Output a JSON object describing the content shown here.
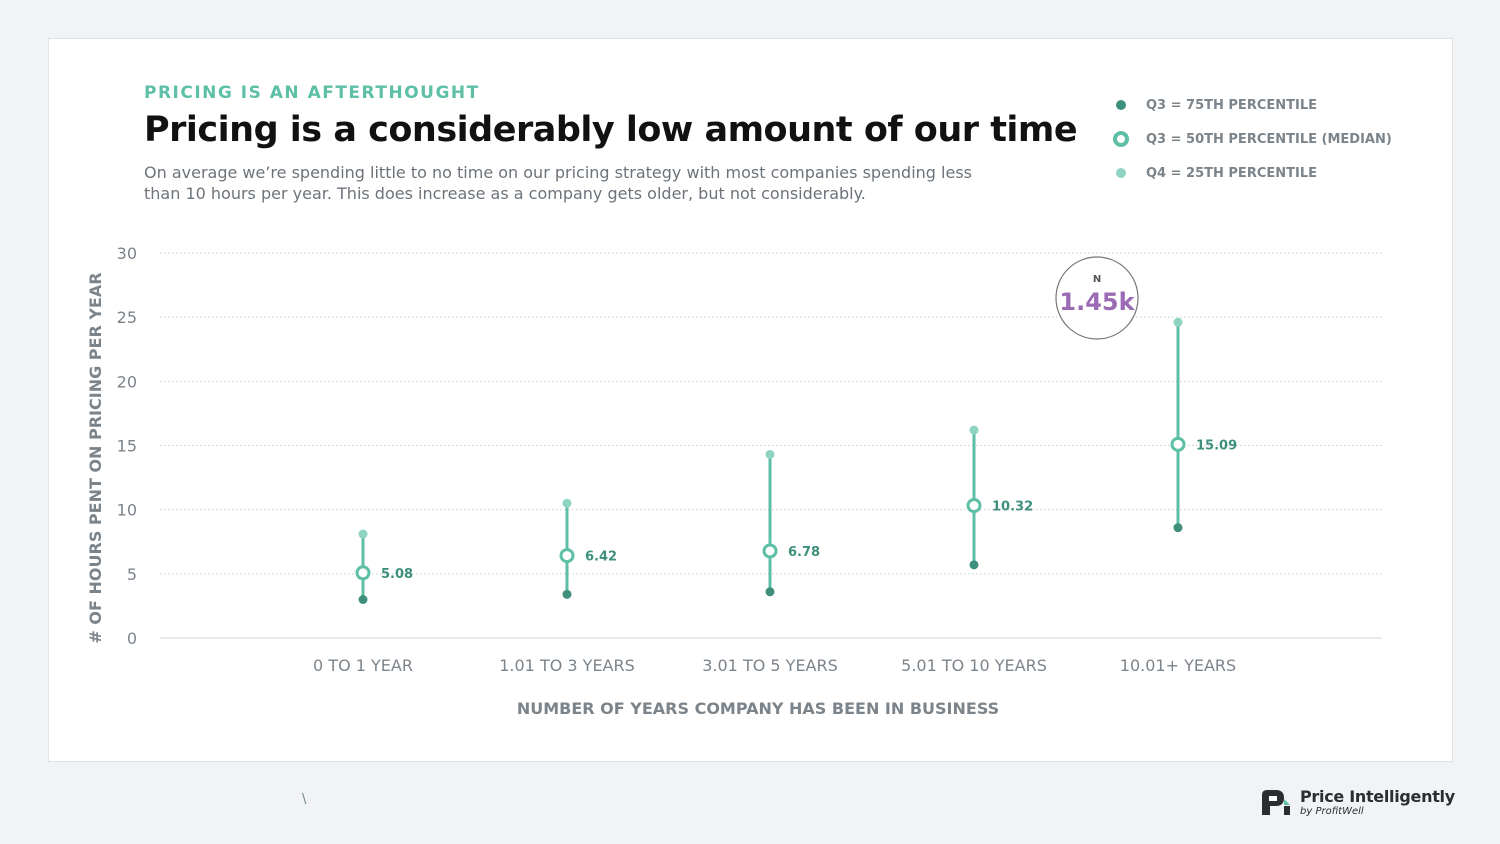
{
  "header": {
    "kicker": "PRICING IS AN AFTERTHOUGHT",
    "title": "Pricing is a considerably low amount of our time",
    "subtitle": "On average we’re spending little to no time on our pricing strategy with most companies spending less than 10 hours per year. This does increase as a company gets older, but not considerably."
  },
  "legend": [
    {
      "label": "Q3 = 75TH PERCENTILE",
      "color": "#3f8f7d",
      "style": "solid-dot"
    },
    {
      "label": "Q3 = 50TH PERCENTILE (MEDIAN)",
      "color": "#5cbfa6",
      "style": "ring"
    },
    {
      "label": "Q4 = 25TH PERCENTILE",
      "color": "#8fd3c3",
      "style": "light-dot"
    }
  ],
  "badge": {
    "label": "N",
    "value": "1.45k",
    "color": "#9b6bb5"
  },
  "stray_mark": "\\",
  "brand": {
    "name": "Price Intelligently",
    "by": "by ProfitWell"
  },
  "chart_data": {
    "type": "range-dot",
    "xlabel": "NUMBER OF YEARS COMPANY HAS BEEN IN BUSINESS",
    "ylabel": "# OF HOURS PENT ON PRICING PER YEAR",
    "ylim": [
      0,
      30
    ],
    "yticks": [
      0,
      5,
      10,
      15,
      20,
      25,
      30
    ],
    "grid": true,
    "legend_position": "top-right",
    "categories": [
      "0 TO 1 YEAR",
      "1.01 TO 3 YEARS",
      "3.01 TO 5 YEARS",
      "5.01 TO 10 YEARS",
      "10.01+ YEARS"
    ],
    "series": [
      {
        "name": "Q3 = 75TH PERCENTILE",
        "values": [
          3.0,
          3.4,
          3.6,
          5.7,
          8.6
        ]
      },
      {
        "name": "Q3 = 50TH PERCENTILE (MEDIAN)",
        "values": [
          5.08,
          6.42,
          6.78,
          10.32,
          15.09
        ],
        "labels": [
          "5.08",
          "6.42",
          "6.78",
          "10.32",
          "15.09"
        ]
      },
      {
        "name": "Q4 = 25TH PERCENTILE",
        "values": [
          8.1,
          10.5,
          14.3,
          16.2,
          24.6
        ]
      }
    ]
  }
}
